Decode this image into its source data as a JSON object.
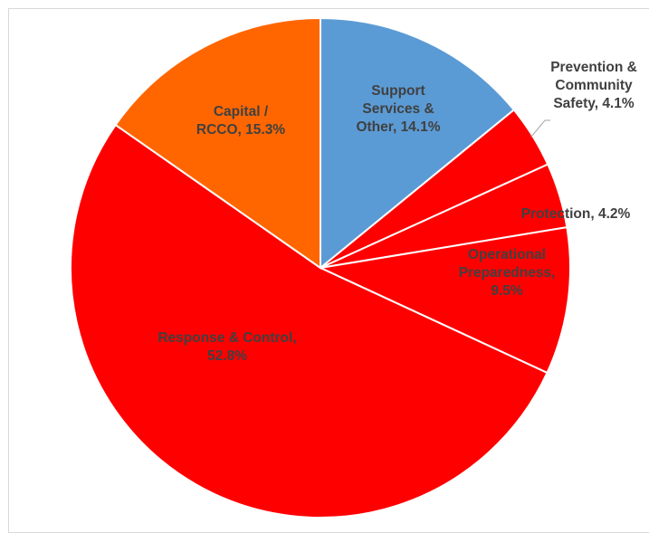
{
  "chart_data": {
    "type": "pie",
    "title": "",
    "slices": [
      {
        "name": "Support Services & Other",
        "value": 14.1,
        "color": "#5b9bd5",
        "label_lines": [
          "Support",
          "Services &",
          "Other, 14.1%"
        ]
      },
      {
        "name": "Prevention & Community Safety",
        "value": 4.1,
        "color": "#ff0000",
        "label_lines": [
          "Prevention &",
          "Community",
          "Safety, 4.1%"
        ]
      },
      {
        "name": "Protection",
        "value": 4.2,
        "color": "#ff0000",
        "label_lines": [
          "Protection, 4.2%"
        ]
      },
      {
        "name": "Operational Preparedness",
        "value": 9.5,
        "color": "#ff0000",
        "label_lines": [
          "Operational",
          "Preparedness,",
          "9.5%"
        ]
      },
      {
        "name": "Response & Control",
        "value": 52.8,
        "color": "#ff0000",
        "label_lines": [
          "Response & Control,",
          "52.8%"
        ]
      },
      {
        "name": "Capital / RCCO",
        "value": 15.3,
        "color": "#ff6600",
        "label_lines": [
          "Capital /",
          "RCCO, 15.3%"
        ]
      }
    ],
    "start_angle": "12 o'clock",
    "direction": "clockwise",
    "legend": "none",
    "label_color": "#404040"
  }
}
